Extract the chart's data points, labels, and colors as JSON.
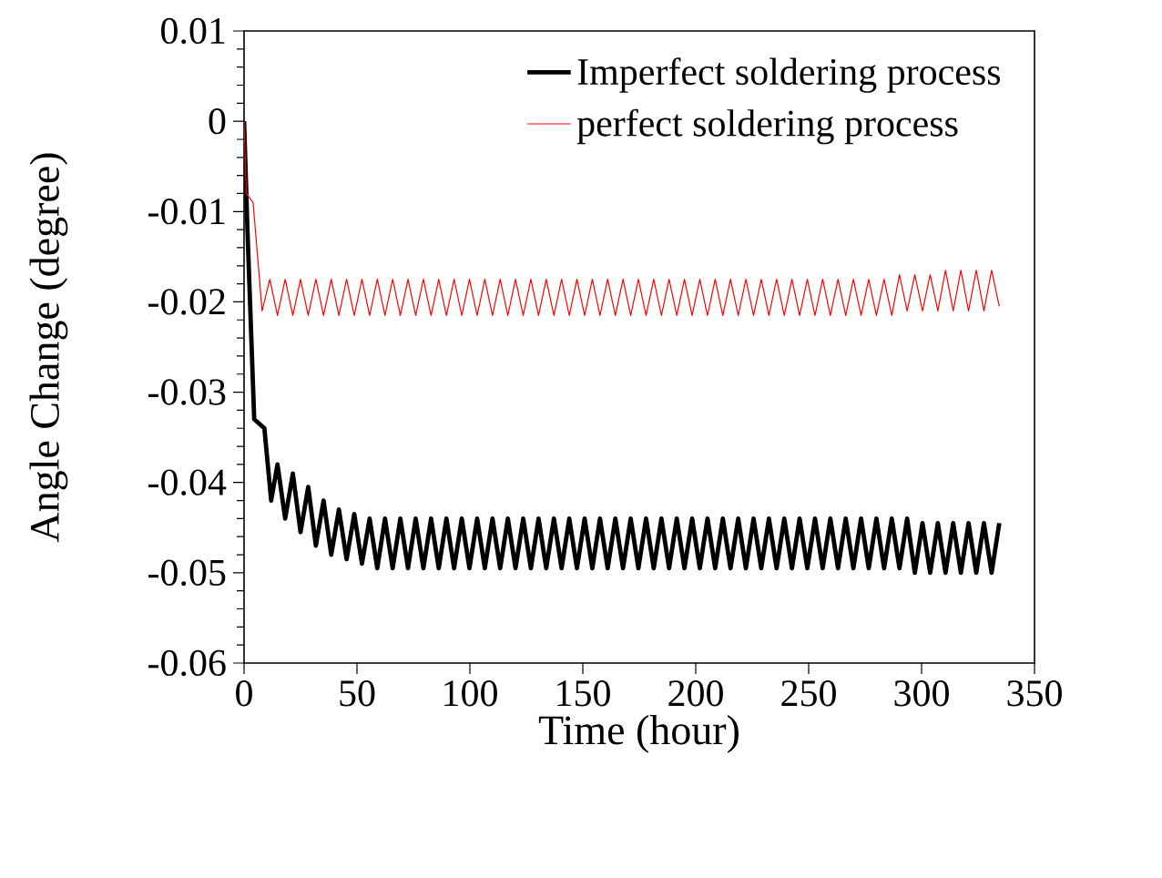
{
  "chart_data": {
    "type": "line",
    "xlabel": "Time (hour)",
    "ylabel": "Angle Change (degree)",
    "xlim": [
      0,
      350
    ],
    "xticks": [
      0,
      50,
      100,
      150,
      200,
      250,
      300,
      350
    ],
    "ylim": [
      -0.06,
      0.01
    ],
    "yticks": [
      -0.06,
      -0.05,
      -0.04,
      -0.03,
      -0.02,
      -0.01,
      0,
      0.01
    ],
    "legend": "top right",
    "grid": false,
    "marker": "none",
    "line_style": "solid",
    "series": [
      {
        "name": "Imperfect soldering process",
        "color": "#000000",
        "x": [
          0,
          1.5,
          4.5,
          9,
          12,
          14.8,
          18.2,
          21.6,
          25,
          28.4,
          31.8,
          35.2,
          38.6,
          42,
          45.4,
          48.8,
          52.2,
          55.6,
          59,
          62.4,
          65.8,
          69.2,
          72.6,
          76,
          79.4,
          82.8,
          86.2,
          89.6,
          93,
          96.4,
          99.8,
          103.2,
          106.6,
          110,
          113.4,
          116.8,
          120.2,
          123.6,
          127,
          130.4,
          133.8,
          137.2,
          140.6,
          144,
          147.4,
          150.8,
          154.2,
          157.6,
          161,
          164.4,
          167.8,
          171.2,
          174.6,
          178,
          181.4,
          184.8,
          188.2,
          191.6,
          195,
          198.4,
          201.8,
          205.2,
          208.6,
          212,
          215.4,
          218.8,
          222.2,
          225.6,
          229,
          232.4,
          235.8,
          239.2,
          242.6,
          246,
          249.4,
          252.8,
          256.2,
          259.6,
          263,
          266.4,
          269.8,
          273.2,
          276.6,
          280,
          283.4,
          286.8,
          290.2,
          293.6,
          297,
          300.4,
          303.8,
          307.2,
          310.6,
          314,
          317.4,
          320.8,
          324.2,
          327.6,
          331,
          334.4
        ],
        "values": [
          0,
          -0.012,
          -0.033,
          -0.034,
          -0.042,
          -0.038,
          -0.044,
          -0.039,
          -0.0455,
          -0.0405,
          -0.047,
          -0.042,
          -0.048,
          -0.043,
          -0.0485,
          -0.0435,
          -0.049,
          -0.044,
          -0.0495,
          -0.044,
          -0.0495,
          -0.044,
          -0.0495,
          -0.044,
          -0.0495,
          -0.044,
          -0.0495,
          -0.044,
          -0.0495,
          -0.044,
          -0.0495,
          -0.044,
          -0.0495,
          -0.044,
          -0.0495,
          -0.044,
          -0.0495,
          -0.044,
          -0.0495,
          -0.044,
          -0.0495,
          -0.044,
          -0.0495,
          -0.044,
          -0.0495,
          -0.044,
          -0.0495,
          -0.044,
          -0.0495,
          -0.044,
          -0.0495,
          -0.044,
          -0.0495,
          -0.044,
          -0.0495,
          -0.044,
          -0.0495,
          -0.044,
          -0.0495,
          -0.044,
          -0.0495,
          -0.044,
          -0.0495,
          -0.044,
          -0.0495,
          -0.044,
          -0.0495,
          -0.044,
          -0.0495,
          -0.044,
          -0.0495,
          -0.044,
          -0.0495,
          -0.044,
          -0.0495,
          -0.044,
          -0.0495,
          -0.044,
          -0.0495,
          -0.044,
          -0.0495,
          -0.044,
          -0.0495,
          -0.044,
          -0.0495,
          -0.044,
          -0.0495,
          -0.044,
          -0.05,
          -0.0445,
          -0.05,
          -0.0445,
          -0.05,
          -0.0445,
          -0.05,
          -0.0445,
          -0.05,
          -0.0445,
          -0.05,
          -0.0445
        ]
      },
      {
        "name": "perfect soldering process",
        "color": "#ff0000",
        "x": [
          0,
          1,
          4,
          8,
          11.4,
          14.8,
          18.2,
          21.6,
          25,
          28.4,
          31.8,
          35.2,
          38.6,
          42,
          45.4,
          48.8,
          52.2,
          55.6,
          59,
          62.4,
          65.8,
          69.2,
          72.6,
          76,
          79.4,
          82.8,
          86.2,
          89.6,
          93,
          96.4,
          99.8,
          103.2,
          106.6,
          110,
          113.4,
          116.8,
          120.2,
          123.6,
          127,
          130.4,
          133.8,
          137.2,
          140.6,
          144,
          147.4,
          150.8,
          154.2,
          157.6,
          161,
          164.4,
          167.8,
          171.2,
          174.6,
          178,
          181.4,
          184.8,
          188.2,
          191.6,
          195,
          198.4,
          201.8,
          205.2,
          208.6,
          212,
          215.4,
          218.8,
          222.2,
          225.6,
          229,
          232.4,
          235.8,
          239.2,
          242.6,
          246,
          249.4,
          252.8,
          256.2,
          259.6,
          263,
          266.4,
          269.8,
          273.2,
          276.6,
          280,
          283.4,
          286.8,
          290.2,
          293.6,
          297,
          300.4,
          303.8,
          307.2,
          310.6,
          314,
          317.4,
          320.8,
          324.2,
          327.6,
          331,
          334.4
        ],
        "values": [
          0,
          -0.008,
          -0.009,
          -0.021,
          -0.0175,
          -0.0215,
          -0.0175,
          -0.0215,
          -0.0175,
          -0.0215,
          -0.0175,
          -0.0215,
          -0.0175,
          -0.0215,
          -0.0175,
          -0.0215,
          -0.0175,
          -0.0215,
          -0.0175,
          -0.0215,
          -0.0175,
          -0.0215,
          -0.0175,
          -0.0215,
          -0.0175,
          -0.0215,
          -0.0175,
          -0.0215,
          -0.0175,
          -0.0215,
          -0.0175,
          -0.0215,
          -0.0175,
          -0.0215,
          -0.0175,
          -0.0215,
          -0.0175,
          -0.0215,
          -0.0175,
          -0.0215,
          -0.0175,
          -0.0215,
          -0.0175,
          -0.0215,
          -0.0175,
          -0.0215,
          -0.0175,
          -0.0215,
          -0.0175,
          -0.0215,
          -0.0175,
          -0.0215,
          -0.0175,
          -0.0215,
          -0.0175,
          -0.0215,
          -0.0175,
          -0.0215,
          -0.0175,
          -0.0215,
          -0.0175,
          -0.0215,
          -0.0175,
          -0.0215,
          -0.0175,
          -0.0215,
          -0.0175,
          -0.0215,
          -0.0175,
          -0.0215,
          -0.0175,
          -0.0215,
          -0.0175,
          -0.0215,
          -0.0175,
          -0.0215,
          -0.0175,
          -0.0215,
          -0.0175,
          -0.0215,
          -0.0175,
          -0.0215,
          -0.0175,
          -0.0215,
          -0.0175,
          -0.0215,
          -0.017,
          -0.021,
          -0.017,
          -0.021,
          -0.017,
          -0.021,
          -0.0165,
          -0.021,
          -0.0165,
          -0.021,
          -0.0165,
          -0.021,
          -0.0165,
          -0.0205
        ]
      }
    ]
  }
}
